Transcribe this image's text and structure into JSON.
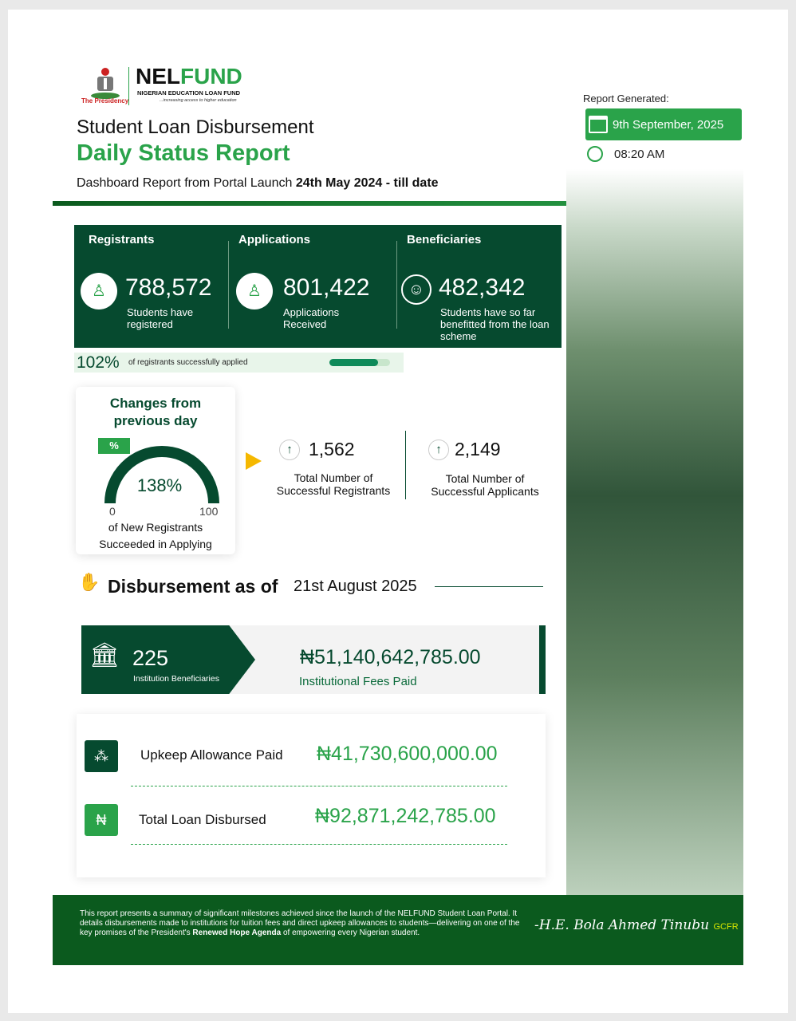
{
  "header": {
    "presidency": "The Presidency",
    "brand_a": "NEL",
    "brand_b": "FUND",
    "brand_full": "NIGERIAN EDUCATION LOAN FUND",
    "tagline": "...increasing access to higher education",
    "title_1": "Student Loan Disbursement",
    "title_2": "Daily Status Report",
    "subtitle_a": "Dashboard Report from Portal Launch ",
    "subtitle_b": "24th May 2024 - till date",
    "generated_label": "Report Generated:",
    "date": "9th September, 2025",
    "time": "08:20 AM"
  },
  "stats": [
    {
      "heading": "Registrants",
      "value": "788,572",
      "desc": "Students have registered",
      "icon": "student-icon"
    },
    {
      "heading": "Applications",
      "value": "801,422",
      "desc": "Applications Received",
      "icon": "student-icon"
    },
    {
      "heading": "Beneficiaries",
      "value": "482,342",
      "desc": "Students have so far benefitted from the loan scheme",
      "icon": "graduate-smiley-icon"
    }
  ],
  "applied": {
    "percent": "102%",
    "label": "of registrants successfully applied",
    "bar_fill": 0.8
  },
  "changes": {
    "title": "Changes from previous day",
    "badge": "%",
    "gauge_value": "138%",
    "gauge_min": "0",
    "gauge_max": "100",
    "caption": "of New Registrants Succeeded in Applying",
    "items": [
      {
        "value": "1,562",
        "label": "Total Number of Successful Registrants"
      },
      {
        "value": "2,149",
        "label": "Total Number of Successful Applicants"
      }
    ]
  },
  "disbursement": {
    "heading": "Disbursement as of",
    "date": "21st August 2025",
    "institutions": "225",
    "institutions_label": "Institution Beneficiaries",
    "fees": "₦51,140,642,785.00",
    "fees_label": "Institutional Fees Paid",
    "upkeep_label": "Upkeep Allowance Paid",
    "upkeep": "₦41,730,600,000.00",
    "total_label": "Total Loan Disbursed",
    "total": "₦92,871,242,785.00"
  },
  "footer": {
    "text_a": "This report presents a summary of significant milestones achieved since the launch of the NELFUND Student Loan Portal. It details disbursements made to institutions for tuition fees and direct upkeep allowances to students—delivering on one of the key promises of the President's ",
    "text_b": "Renewed Hope Agenda",
    "text_c": " of empowering every Nigerian student.",
    "signature": "-H.E. Bola Ahmed Tinubu",
    "signature_suffix": "GCFR"
  },
  "colors": {
    "dark_green": "#064a2f",
    "accent_green": "#2aa34a",
    "footer_green": "#0b5a1e"
  }
}
